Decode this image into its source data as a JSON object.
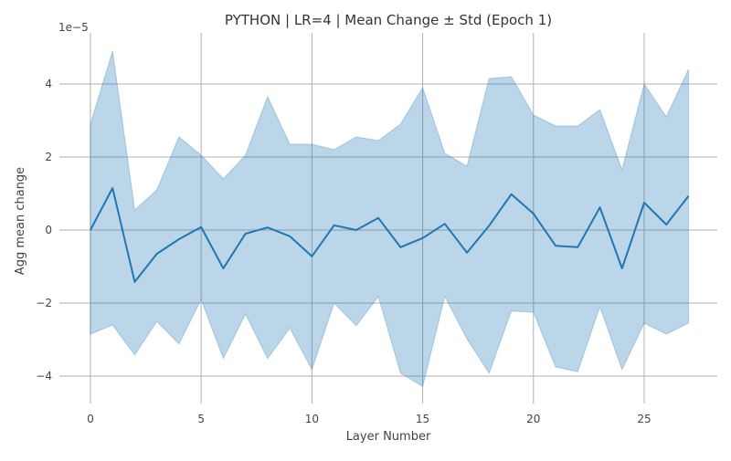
{
  "chart_data": {
    "type": "line",
    "title": "PYTHON | LR=4 | Mean Change ± Std (Epoch 1)",
    "xlabel": "Layer Number",
    "ylabel": "Agg mean change",
    "y_offset_text": "1e−5",
    "xlim": [
      -1.4,
      28.3
    ],
    "ylim": [
      -4.75,
      5.4
    ],
    "x_ticks": [
      0,
      5,
      10,
      15,
      20,
      25
    ],
    "x_tick_labels": [
      "0",
      "5",
      "10",
      "15",
      "20",
      "25"
    ],
    "y_ticks": [
      -4,
      -2,
      0,
      2,
      4
    ],
    "y_tick_labels": [
      "−4",
      "−2",
      "0",
      "2",
      "4"
    ],
    "grid": true,
    "colors": {
      "line": "#1f77b4",
      "band": "#1f77b4"
    },
    "x": [
      0,
      1,
      2,
      3,
      4,
      5,
      6,
      7,
      8,
      9,
      10,
      11,
      12,
      13,
      14,
      15,
      16,
      17,
      18,
      19,
      20,
      21,
      22,
      23,
      24,
      25,
      26,
      27
    ],
    "series": [
      {
        "mean": [
          0.0,
          1.15,
          -1.42,
          -0.65,
          -0.25,
          0.08,
          -1.05,
          -0.1,
          0.07,
          -0.17,
          -0.72,
          0.13,
          0.0,
          0.33,
          -0.47,
          -0.22,
          0.17,
          -0.62,
          0.12,
          0.98,
          0.45,
          -0.43,
          -0.47,
          0.62,
          -1.05,
          0.75,
          0.15,
          0.93
        ],
        "upper": [
          2.9,
          4.9,
          0.55,
          1.1,
          2.55,
          2.05,
          1.4,
          2.05,
          3.65,
          2.35,
          2.35,
          2.2,
          2.55,
          2.45,
          2.9,
          3.9,
          2.1,
          1.75,
          4.15,
          4.2,
          3.15,
          2.85,
          2.85,
          3.3,
          1.65,
          4.0,
          3.1,
          4.4
        ],
        "lower": [
          -2.85,
          -2.6,
          -3.42,
          -2.5,
          -3.12,
          -1.9,
          -3.52,
          -2.3,
          -3.52,
          -2.68,
          -3.82,
          -2.0,
          -2.62,
          -1.82,
          -3.92,
          -4.28,
          -1.82,
          -2.98,
          -3.92,
          -2.22,
          -2.25,
          -3.75,
          -3.88,
          -2.1,
          -3.82,
          -2.55,
          -2.85,
          -2.55
        ]
      }
    ]
  }
}
